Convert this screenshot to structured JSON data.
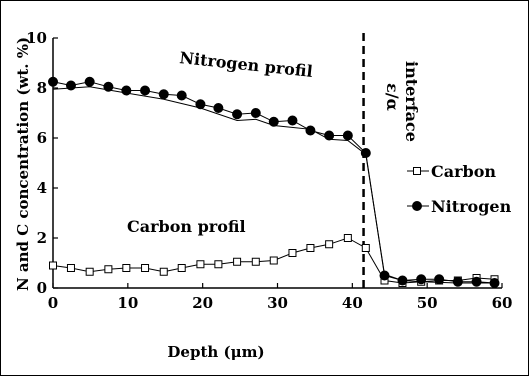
{
  "chart_data": {
    "type": "line",
    "title": "",
    "xlabel": "Depth (μm)",
    "ylabel": "N and C concentration (wt. %)",
    "xlim": [
      0,
      60
    ],
    "ylim": [
      0,
      10
    ],
    "xticks": [
      "0",
      "10",
      "20",
      "30",
      "40",
      "50",
      "60"
    ],
    "yticks": [
      "0",
      "2",
      "4",
      "6",
      "8",
      "10"
    ],
    "grid": false,
    "legend_position": "right",
    "series": [
      {
        "name": "Carbon",
        "marker": "open-square",
        "x": [
          0,
          2.4,
          4.9,
          7.4,
          9.8,
          12.3,
          14.8,
          17.2,
          19.7,
          22.1,
          24.6,
          27.1,
          29.5,
          32.0,
          34.4,
          36.9,
          39.4,
          41.8,
          44.3,
          46.7,
          49.2,
          51.6,
          54.1,
          56.6,
          59.0
        ],
        "values": [
          0.9,
          0.8,
          0.65,
          0.75,
          0.8,
          0.8,
          0.65,
          0.8,
          0.95,
          0.95,
          1.05,
          1.05,
          1.1,
          1.4,
          1.6,
          1.75,
          2.0,
          1.6,
          0.3,
          0.2,
          0.25,
          0.3,
          0.3,
          0.4,
          0.35
        ]
      },
      {
        "name": "Nitrogen",
        "marker": "filled-circle",
        "x": [
          0,
          2.4,
          4.9,
          7.4,
          9.8,
          12.3,
          14.8,
          17.2,
          19.7,
          22.1,
          24.6,
          27.1,
          29.5,
          32.0,
          34.4,
          36.9,
          39.4,
          41.8,
          44.3,
          46.7,
          49.2,
          51.6,
          54.1,
          56.6,
          59.0
        ],
        "values": [
          8.25,
          8.1,
          8.25,
          8.05,
          7.9,
          7.9,
          7.75,
          7.7,
          7.35,
          7.2,
          6.95,
          7.0,
          6.65,
          6.7,
          6.3,
          6.1,
          6.1,
          5.4,
          0.5,
          0.3,
          0.35,
          0.35,
          0.25,
          0.25,
          0.2
        ]
      },
      {
        "name": "",
        "role": "trend",
        "x": [
          0,
          4.9,
          9.8,
          14.8,
          19.7,
          24.6,
          27.1,
          29.5,
          34.4,
          36.9,
          39.4,
          41.8,
          44.3,
          46.7,
          49.2,
          54.1,
          59.0
        ],
        "values": [
          7.95,
          8.05,
          7.8,
          7.55,
          7.2,
          6.7,
          6.75,
          6.5,
          6.35,
          5.95,
          5.9,
          5.35,
          0.55,
          0.3,
          0.25,
          0.2,
          0.2
        ]
      }
    ],
    "annotations": [
      {
        "text": "Nitrogen profil"
      },
      {
        "text": "Carbon profil"
      },
      {
        "text": "ε/α",
        "rotated": true
      },
      {
        "text": "interface",
        "rotated": true
      }
    ],
    "interface_x": 41.5
  }
}
